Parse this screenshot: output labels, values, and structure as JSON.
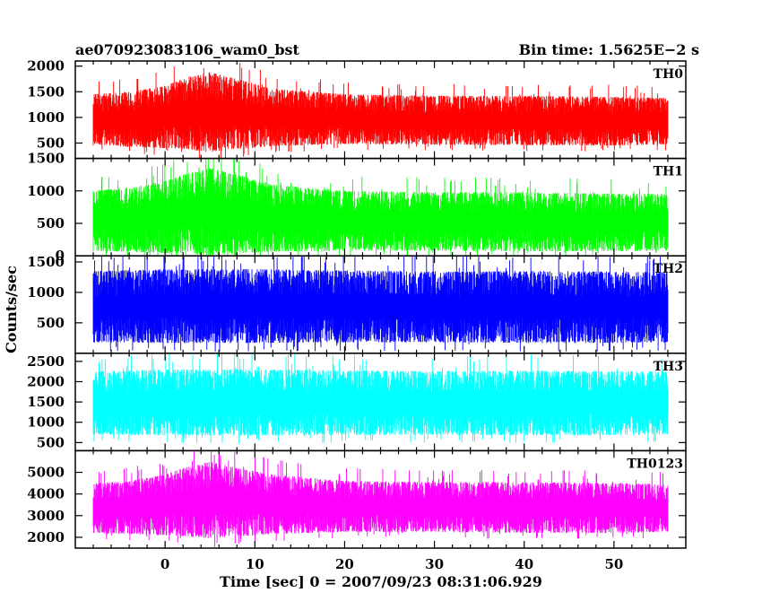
{
  "header": {
    "left_title": "ae070923083106_wam0_bst",
    "right_title": "Bin time: 1.5625E−2 s"
  },
  "xlabel": "Time [sec] 0 = 2007/09/23 08:31:06.929",
  "ylabel": "Counts/sec",
  "chart_data": {
    "type": "line",
    "title": "ae070923083106_wam0_bst",
    "subtitle": "Bin time: 1.5625E−2 s",
    "xlabel": "Time [sec] 0 = 2007/09/23 08:31:06.929",
    "ylabel": "Counts/sec",
    "xlim": [
      -10,
      58
    ],
    "x_ticks": [
      0,
      10,
      20,
      30,
      40,
      50
    ],
    "x_range_data": [
      -8,
      56
    ],
    "panels": [
      {
        "name": "TH0",
        "color": "#ff0000",
        "ylim": [
          200,
          2100
        ],
        "y_ticks": [
          500,
          1000,
          1500,
          2000
        ],
        "y_tick_labels": [
          "500",
          "1000",
          "1500",
          "2000"
        ],
        "envelope_x": [
          -8,
          -4,
          0,
          2,
          5,
          8,
          12,
          20,
          30,
          40,
          50,
          56
        ],
        "envelope_low": [
          480,
          420,
          400,
          380,
          320,
          380,
          440,
          480,
          470,
          460,
          450,
          470
        ],
        "envelope_high": [
          1450,
          1500,
          1620,
          1750,
          1880,
          1750,
          1560,
          1450,
          1420,
          1420,
          1400,
          1380
        ]
      },
      {
        "name": "TH1",
        "color": "#00ff00",
        "ylim": [
          0,
          1500
        ],
        "y_ticks": [
          0,
          500,
          1000,
          1500
        ],
        "y_tick_labels": [
          "0",
          "500",
          "1000",
          "1500"
        ],
        "envelope_x": [
          -8,
          -4,
          0,
          2,
          5,
          8,
          12,
          20,
          30,
          40,
          50,
          56
        ],
        "envelope_low": [
          80,
          60,
          40,
          30,
          10,
          40,
          60,
          80,
          80,
          70,
          70,
          80
        ],
        "envelope_high": [
          1000,
          1050,
          1150,
          1250,
          1350,
          1250,
          1100,
          1000,
          980,
          980,
          960,
          950
        ]
      },
      {
        "name": "TH2",
        "color": "#0000ff",
        "ylim": [
          0,
          1600
        ],
        "y_ticks": [
          500,
          1000,
          1500
        ],
        "y_tick_labels": [
          "500",
          "1000",
          "1500"
        ],
        "envelope_x": [
          -8,
          0,
          10,
          20,
          30,
          40,
          50,
          56
        ],
        "envelope_low": [
          180,
          170,
          170,
          180,
          180,
          170,
          170,
          180
        ],
        "envelope_high": [
          1350,
          1380,
          1380,
          1360,
          1340,
          1350,
          1340,
          1330
        ]
      },
      {
        "name": "TH3",
        "color": "#00ffff",
        "ylim": [
          300,
          2700
        ],
        "y_ticks": [
          500,
          1000,
          1500,
          2000,
          2500
        ],
        "y_tick_labels": [
          "500",
          "1000",
          "1500",
          "2000",
          "2500"
        ],
        "envelope_x": [
          -8,
          0,
          10,
          20,
          30,
          40,
          50,
          56
        ],
        "envelope_low": [
          700,
          680,
          670,
          690,
          690,
          680,
          680,
          700
        ],
        "envelope_high": [
          2250,
          2300,
          2300,
          2280,
          2260,
          2270,
          2260,
          2250
        ]
      },
      {
        "name": "TH0123",
        "color": "#ff00ff",
        "ylim": [
          1500,
          6000
        ],
        "y_ticks": [
          2000,
          3000,
          4000,
          5000
        ],
        "y_tick_labels": [
          "2000",
          "3000",
          "4000",
          "5000"
        ],
        "envelope_x": [
          -8,
          -4,
          0,
          2,
          5,
          8,
          12,
          20,
          30,
          40,
          50,
          56
        ],
        "envelope_low": [
          2200,
          2150,
          2100,
          2050,
          1950,
          2050,
          2150,
          2250,
          2250,
          2200,
          2200,
          2250
        ],
        "envelope_high": [
          4500,
          4600,
          4900,
          5200,
          5500,
          5200,
          4900,
          4600,
          4550,
          4550,
          4500,
          4450
        ]
      }
    ]
  }
}
